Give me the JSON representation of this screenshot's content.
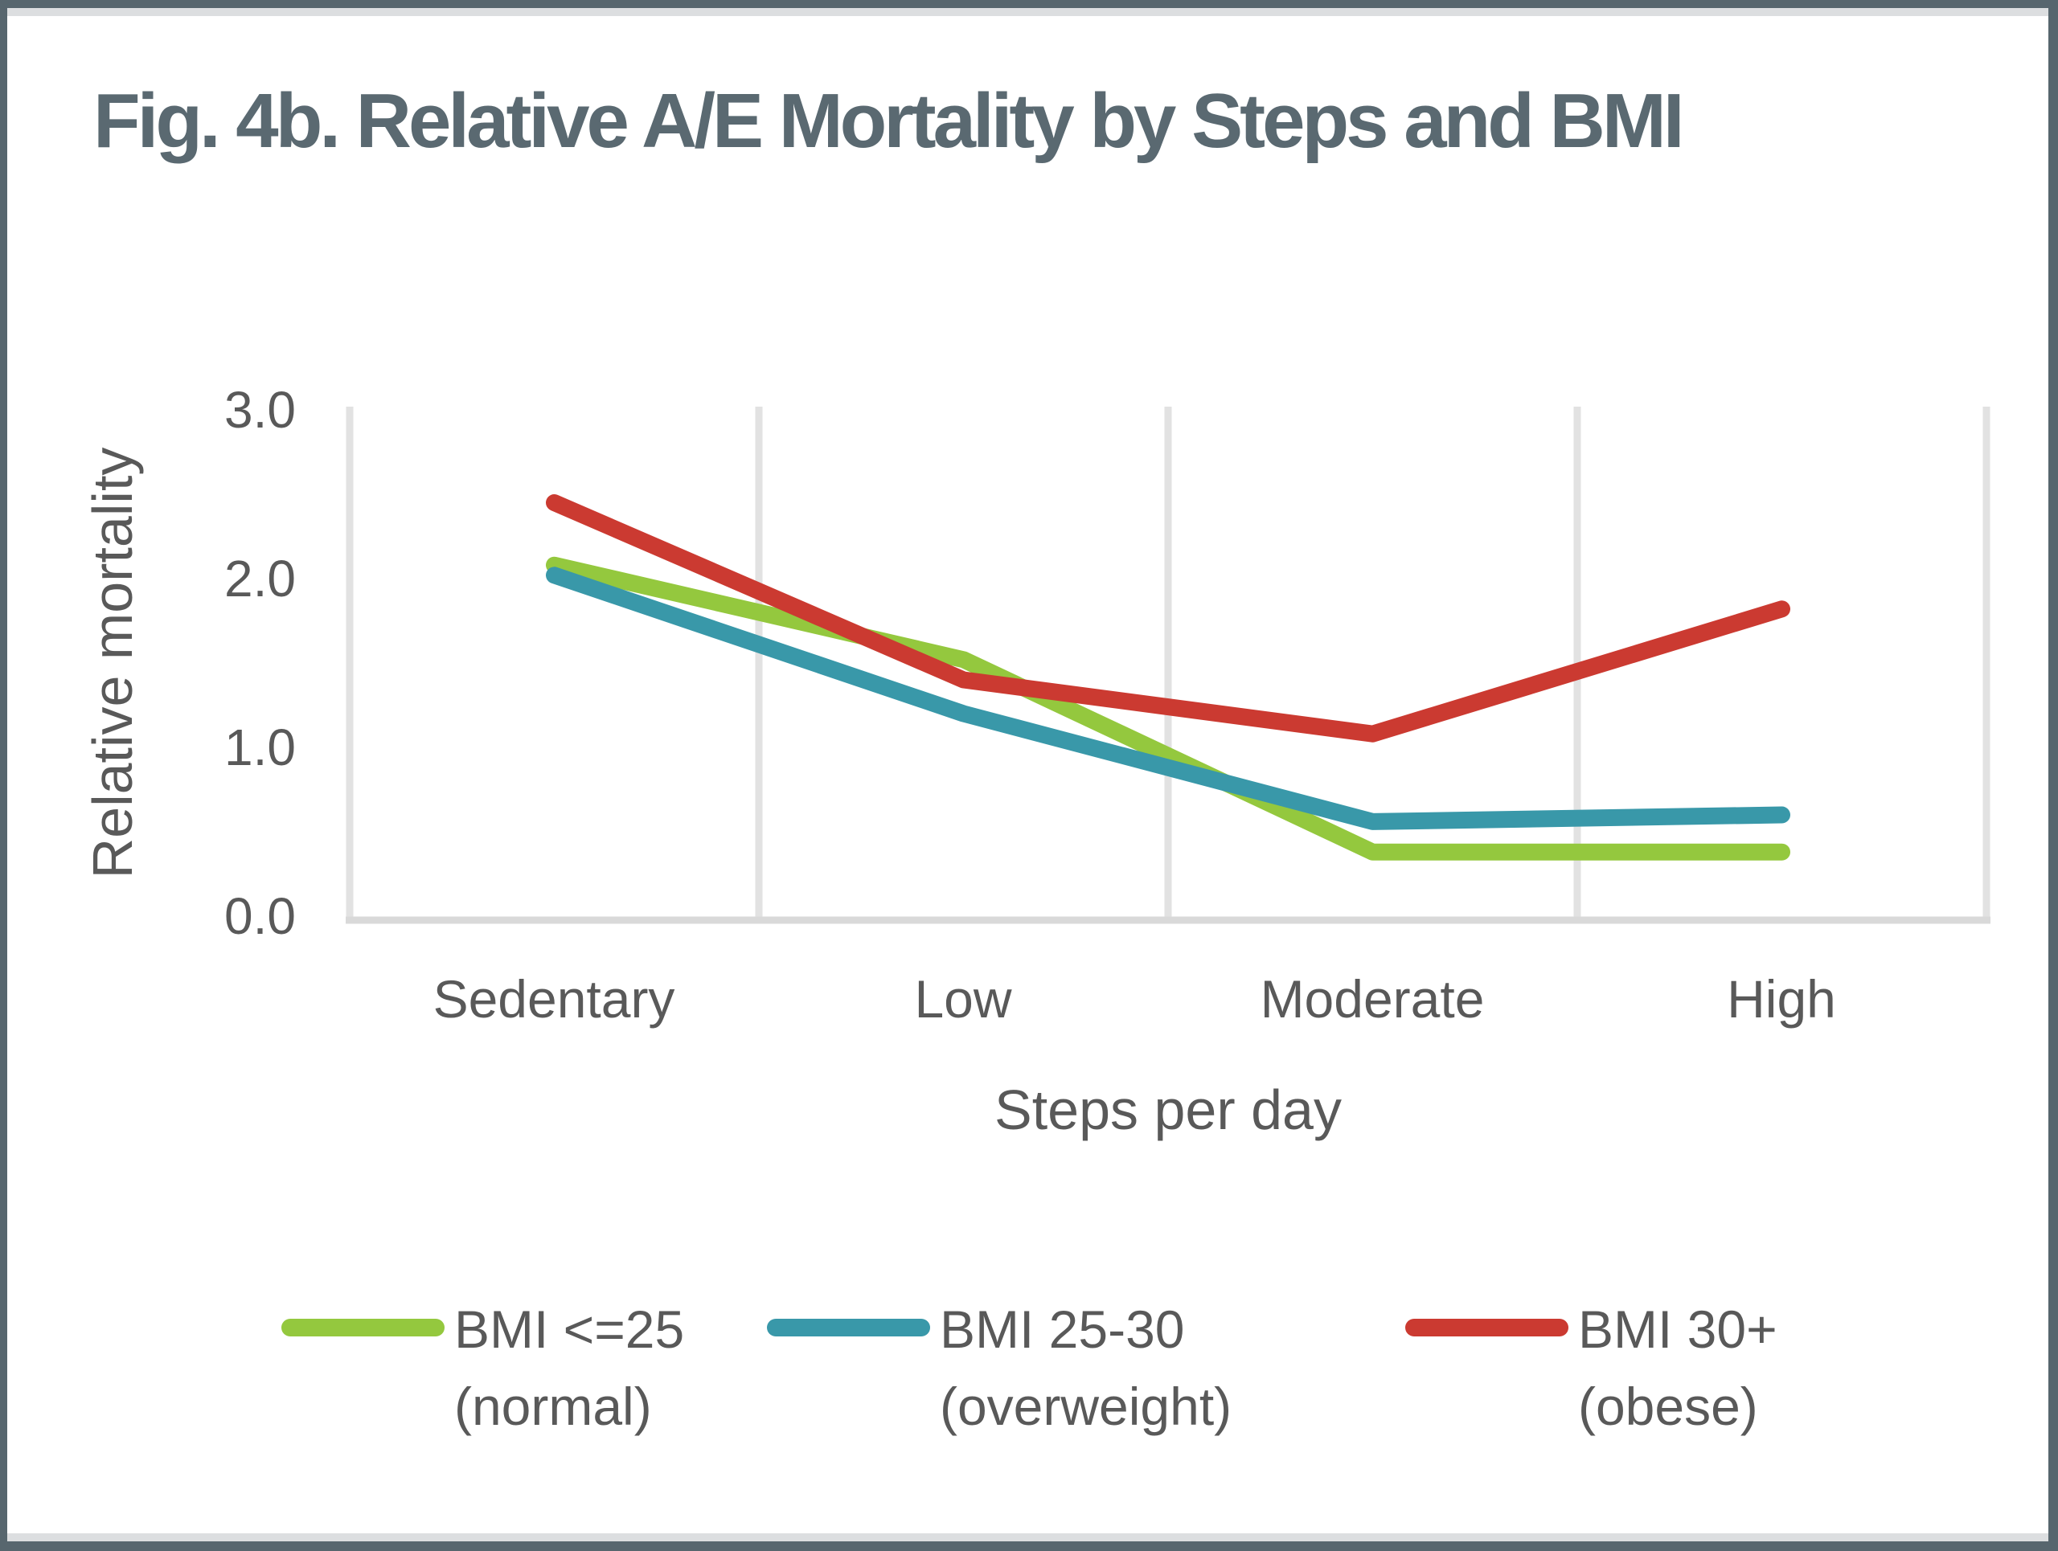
{
  "title": "Fig. 4b. Relative A/E Mortality by Steps and BMI",
  "colors": {
    "frame": "#57666E",
    "title": "#5A6971",
    "strip": "#DCDEE0",
    "grid": "#E2E2E2",
    "axis": "#D9D9D9",
    "text": "#595959",
    "green": "#94C83E",
    "teal": "#3998A9",
    "red": "#CB3A31"
  },
  "chart_data": {
    "type": "line",
    "title": "Fig. 4b. Relative A/E Mortality by Steps and BMI",
    "categories": [
      "Sedentary",
      "Low",
      "Moderate",
      "High"
    ],
    "series": [
      {
        "name": "BMI <=25 (normal)",
        "color_key": "green",
        "values": [
          2.08,
          1.52,
          0.38,
          0.38
        ]
      },
      {
        "name": "BMI 25-30 (overweight)",
        "color_key": "teal",
        "values": [
          2.02,
          1.2,
          0.56,
          0.6
        ]
      },
      {
        "name": "BMI 30+ (obese)",
        "color_key": "red",
        "values": [
          2.45,
          1.4,
          1.08,
          1.82
        ]
      }
    ],
    "xlabel": "Steps per day",
    "ylabel": "Relative mortality",
    "ylim": [
      0,
      3
    ],
    "yticks": [
      "0.0",
      "1.0",
      "2.0",
      "3.0"
    ],
    "grid": "vertical-only",
    "line_width": 21,
    "legend_position": "bottom"
  },
  "legend": {
    "items": [
      {
        "line1": "BMI <=25",
        "line2": "(normal)",
        "color_key": "green"
      },
      {
        "line1": "BMI 25-30",
        "line2": "(overweight)",
        "color_key": "teal"
      },
      {
        "line1": "BMI 30+",
        "line2": "(obese)",
        "color_key": "red"
      }
    ]
  }
}
